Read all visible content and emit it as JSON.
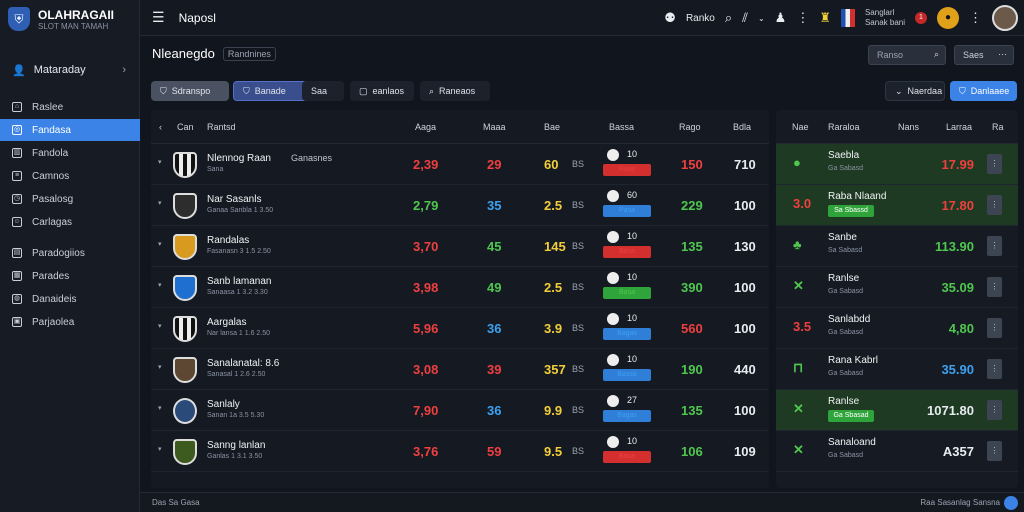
{
  "brand": {
    "title": "OLAHRAGAII",
    "subtitle": "SLOT MAN TAMAH"
  },
  "header": {
    "title": "Naposl",
    "live_label": "Ranko",
    "account_line1": "Sanglarl",
    "account_line2": "Sanak bani",
    "notif_count": "1"
  },
  "sidebar": {
    "profile": "Mataraday",
    "items": [
      {
        "label": "Raslee",
        "icon": "home-icon"
      },
      {
        "label": "Fandasa",
        "icon": "target-icon",
        "active": true
      },
      {
        "label": "Fandola",
        "icon": "chart-icon"
      },
      {
        "label": "Camnos",
        "icon": "list-icon"
      },
      {
        "label": "Pasalosg",
        "icon": "clock-icon"
      },
      {
        "label": "Carlagas",
        "icon": "user-icon"
      },
      {
        "label": "Paradogiios",
        "icon": "ticket-icon"
      },
      {
        "label": "Parades",
        "icon": "doc-icon"
      },
      {
        "label": "Danaideis",
        "icon": "globe-icon"
      },
      {
        "label": "Parjaolea",
        "icon": "book-icon"
      }
    ]
  },
  "page": {
    "title": "Nleanegdo",
    "subtitle": "Randnines",
    "search_placeholder": "Ranso",
    "search2": "Saes"
  },
  "filters": [
    "Sdranspo",
    "Banade",
    "Saa",
    "eanlaos",
    "Raneaos"
  ],
  "right_filters": {
    "f1": "Naerdaa",
    "f2": "Danlaaee"
  },
  "table": {
    "headers": {
      "c0": "Can",
      "c1": "Rantsd",
      "c2": "Aaga",
      "c3": "Maaa",
      "c4": "Bae",
      "c5": "Bassa",
      "c6": "Rago",
      "c7": "Bdla"
    },
    "rows": [
      {
        "name": "Nlennog Raan",
        "extra": "Ganasnes",
        "sub": "Sana",
        "v1": "2,39",
        "v1c": "red",
        "v2": "29",
        "v2c": "red",
        "v3": "60",
        "v4": "BS",
        "mnum": "10",
        "tag": "Raas",
        "tagc": "red",
        "v6": "150",
        "v6c": "red",
        "v7": "710",
        "crest": ""
      },
      {
        "name": "Nar Sasanls",
        "extra": "",
        "sub": "Ganaa Sanbla 1 3.50",
        "v1": "2,79",
        "v1c": "green",
        "v2": "35",
        "v2c": "blue",
        "v3": "2.5",
        "v4": "BS",
        "mnum": "60",
        "tag": "Pasa",
        "tagc": "blue",
        "v6": "229",
        "v6c": "green",
        "v7": "100",
        "crest": "c2"
      },
      {
        "name": "Randalas",
        "extra": "",
        "sub": "Fasanasn 3 1.5 2.50",
        "v1": "3,70",
        "v1c": "red",
        "v2": "45",
        "v2c": "green",
        "v3": "145",
        "v4": "BS",
        "mnum": "10",
        "tag": "Basa",
        "tagc": "red",
        "v6": "135",
        "v6c": "green",
        "v7": "130",
        "crest": "c3"
      },
      {
        "name": "Sanb lamanan",
        "extra": "",
        "sub": "Sanaasa 1 3.2 3.30",
        "v1": "3,98",
        "v1c": "red",
        "v2": "49",
        "v2c": "green",
        "v3": "2.5",
        "v4": "BS",
        "mnum": "10",
        "tag": "Basa",
        "tagc": "green",
        "v6": "390",
        "v6c": "green",
        "v7": "100",
        "crest": "c4"
      },
      {
        "name": "Aargalas",
        "extra": "",
        "sub": "Nar lansa 1 1.6 2.50",
        "v1": "5,96",
        "v1c": "red",
        "v2": "36",
        "v2c": "blue",
        "v3": "3.9",
        "v4": "BS",
        "mnum": "10",
        "tag": "Bagas",
        "tagc": "blue",
        "v6": "560",
        "v6c": "red",
        "v7": "100",
        "crest": ""
      },
      {
        "name": "Sanalanatal: 8.6",
        "extra": "",
        "sub": "Sanasal 1 2.6 2.50",
        "v1": "3,08",
        "v1c": "red",
        "v2": "39",
        "v2c": "red",
        "v3": "357",
        "v4": "BS",
        "mnum": "10",
        "tag": "Bassa",
        "tagc": "blue",
        "v6": "190",
        "v6c": "green",
        "v7": "440",
        "crest": "c5"
      },
      {
        "name": "Sanlaly",
        "extra": "",
        "sub": "Sanan 1a 3.5 5.30",
        "v1": "7,90",
        "v1c": "red",
        "v2": "36",
        "v2c": "blue",
        "v3": "9.9",
        "v4": "BS",
        "mnum": "27",
        "tag": "Bagas",
        "tagc": "blue",
        "v6": "135",
        "v6c": "green",
        "v7": "100",
        "crest": "c6"
      },
      {
        "name": "Sanng lanlan",
        "extra": "",
        "sub": "Ganlas 1 3.1 3.50",
        "v1": "3,76",
        "v1c": "red",
        "v2": "59",
        "v2c": "red",
        "v3": "9.5",
        "v4": "BS",
        "mnum": "10",
        "tag": "Baoa",
        "tagc": "red",
        "v6": "106",
        "v6c": "green",
        "v7": "109",
        "crest": "c7"
      }
    ]
  },
  "right_panel": {
    "headers": {
      "h0": "Nae",
      "h1": "Raraloa",
      "h2": "Nans",
      "h3": "Larraa",
      "h4": "Ra"
    },
    "rows": [
      {
        "icon": "●",
        "iconc": "green",
        "name": "Saebla",
        "sub": "Ga Sabasd",
        "tag": "",
        "val": "17.99",
        "valc": "red",
        "g": true
      },
      {
        "icon": "3.0",
        "iconc": "red",
        "name": "Raba Nlaand",
        "sub": "",
        "tag": "Sa Sbassd",
        "val": "17.80",
        "valc": "red",
        "g": true
      },
      {
        "icon": "♣",
        "iconc": "green",
        "name": "Sanbe",
        "sub": "Sa Sabasd",
        "tag": "",
        "val": "113.90",
        "valc": "green",
        "g": false
      },
      {
        "icon": "✕",
        "iconc": "green",
        "name": "Ranlse",
        "sub": "Ga Sabasd",
        "tag": "",
        "val": "35.09",
        "valc": "green",
        "g": false
      },
      {
        "icon": "3.5",
        "iconc": "red",
        "name": "Sanlabdd",
        "sub": "Ga Sabasd",
        "tag": "",
        "val": "4,80",
        "valc": "green",
        "g": false
      },
      {
        "icon": "⊓",
        "iconc": "green",
        "name": "Rana Kabrl",
        "sub": "Ga Sabasd",
        "tag": "",
        "val": "35.90",
        "valc": "blue",
        "g": false
      },
      {
        "icon": "✕",
        "iconc": "green",
        "name": "Ranlse",
        "sub": "",
        "tag": "Ga Sbasad",
        "val": "1071.80",
        "valc": "white",
        "g": true
      },
      {
        "icon": "✕",
        "iconc": "green",
        "name": "Sanaloand",
        "sub": "Ga Sabasd",
        "tag": "",
        "val": "A357",
        "valc": "white",
        "g": false
      }
    ]
  },
  "footer": {
    "left": "Das Sa Gasa",
    "right": "Raa Sasanlag Sansna"
  }
}
